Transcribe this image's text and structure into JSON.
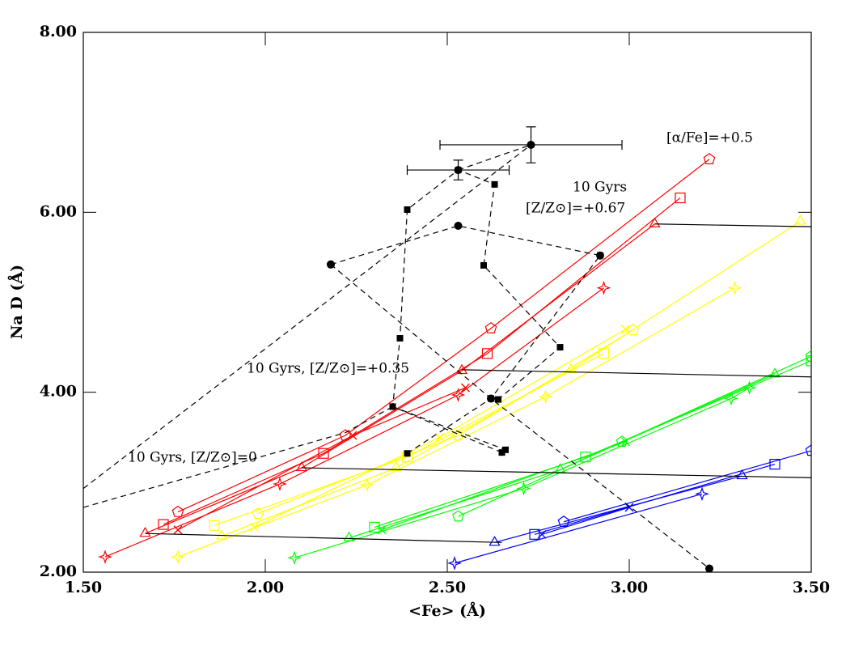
{
  "chart_data": {
    "type": "line",
    "xlabel": "<Fe> (Å)",
    "ylabel": "Na D (Å)",
    "xlim": [
      1.5,
      3.5
    ],
    "ylim": [
      2.0,
      8.0
    ],
    "xticks": [
      {
        "value": 1.5,
        "label": "1.50"
      },
      {
        "value": 2.0,
        "label": "2.00"
      },
      {
        "value": 2.5,
        "label": "2.50"
      },
      {
        "value": 3.0,
        "label": "3.00"
      },
      {
        "value": 3.5,
        "label": "3.50"
      }
    ],
    "yticks": [
      {
        "value": 2.0,
        "label": "2.00"
      },
      {
        "value": 4.0,
        "label": "4.00"
      },
      {
        "value": 6.0,
        "label": "6.00"
      },
      {
        "value": 8.0,
        "label": "8.00"
      }
    ],
    "annotations": [
      "[α/Fe]=+0.5",
      "10 Gyrs",
      "[Z/Z⊙]=+0.67",
      "10 Gyrs, [Z/Z⊙]=+0.35",
      "10 Gyrs, [Z/Z⊙]=0"
    ],
    "series": [
      {
        "color": "#ff0000",
        "marker": "pentagon",
        "x": [
          1.76,
          2.22,
          2.62,
          3.22
        ],
        "y": [
          2.67,
          3.52,
          4.71,
          6.59
        ]
      },
      {
        "color": "#ff0000",
        "marker": "square",
        "x": [
          1.72,
          2.16,
          2.61,
          3.14
        ],
        "y": [
          2.53,
          3.32,
          4.43,
          6.16
        ]
      },
      {
        "color": "#ff0000",
        "marker": "triangle",
        "x": [
          1.67,
          2.1,
          2.54,
          3.07
        ],
        "y": [
          2.43,
          3.16,
          4.24,
          5.87
        ]
      },
      {
        "color": "#ff0000",
        "marker": "x",
        "x": [
          1.76,
          2.24,
          2.55
        ],
        "y": [
          2.47,
          3.52,
          4.05
        ]
      },
      {
        "color": "#ff0000",
        "marker": "star",
        "x": [
          1.56,
          2.04,
          2.53,
          2.93
        ],
        "y": [
          2.17,
          2.98,
          3.97,
          5.16
        ]
      },
      {
        "color": "#ffff00",
        "marker": "pentagon",
        "x": [
          1.98,
          2.53,
          3.01
        ],
        "y": [
          2.65,
          3.52,
          4.69
        ]
      },
      {
        "color": "#ffff00",
        "marker": "square",
        "x": [
          1.86,
          2.39,
          2.93
        ],
        "y": [
          2.52,
          3.28,
          4.43
        ]
      },
      {
        "color": "#ffff00",
        "marker": "triangle",
        "x": [
          1.88,
          2.36,
          2.84,
          3.47
        ],
        "y": [
          2.4,
          3.16,
          4.25,
          5.9
        ]
      },
      {
        "color": "#ffff00",
        "marker": "x",
        "x": [
          1.97,
          2.48,
          2.99
        ],
        "y": [
          2.5,
          3.5,
          4.7
        ]
      },
      {
        "color": "#ffff00",
        "marker": "star",
        "x": [
          1.76,
          2.28,
          2.77,
          3.29
        ],
        "y": [
          2.17,
          2.97,
          3.95,
          5.16
        ]
      },
      {
        "color": "#00ff00",
        "marker": "pentagon",
        "x": [
          2.53,
          2.98,
          3.5
        ],
        "y": [
          2.62,
          3.45,
          4.4
        ]
      },
      {
        "color": "#00ff00",
        "marker": "square",
        "x": [
          2.3,
          2.88,
          3.5
        ],
        "y": [
          2.5,
          3.28,
          4.35
        ]
      },
      {
        "color": "#00ff00",
        "marker": "triangle",
        "x": [
          2.23,
          2.81,
          3.4
        ],
        "y": [
          2.38,
          3.14,
          4.2
        ]
      },
      {
        "color": "#00ff00",
        "marker": "x",
        "x": [
          2.32,
          2.99
        ],
        "y": [
          2.47,
          3.45
        ]
      },
      {
        "color": "#00ff00",
        "marker": "star",
        "x": [
          2.08,
          2.71,
          3.28,
          3.33
        ],
        "y": [
          2.16,
          2.93,
          3.93,
          4.05
        ]
      },
      {
        "color": "#0000ff",
        "marker": "pentagon",
        "x": [
          2.82,
          3.5
        ],
        "y": [
          2.56,
          3.35
        ]
      },
      {
        "color": "#0000ff",
        "marker": "square",
        "x": [
          2.74,
          3.4
        ],
        "y": [
          2.42,
          3.2
        ]
      },
      {
        "color": "#0000ff",
        "marker": "triangle",
        "x": [
          2.63,
          3.31
        ],
        "y": [
          2.33,
          3.07
        ]
      },
      {
        "color": "#0000ff",
        "marker": "x",
        "x": [
          2.76,
          3.0
        ],
        "y": [
          2.42,
          2.72
        ]
      },
      {
        "color": "#0000ff",
        "marker": "star",
        "x": [
          2.52,
          3.2
        ],
        "y": [
          2.1,
          2.87
        ]
      },
      {
        "color": "#000000",
        "marker": "none",
        "x": [
          3.07,
          3.5
        ],
        "y": [
          5.87,
          5.84
        ]
      },
      {
        "color": "#000000",
        "marker": "none",
        "x": [
          2.54,
          3.5
        ],
        "y": [
          4.25,
          4.17
        ]
      },
      {
        "color": "#000000",
        "marker": "none",
        "x": [
          2.1,
          3.5
        ],
        "y": [
          3.16,
          3.05
        ]
      },
      {
        "color": "#000000",
        "marker": "none",
        "x": [
          1.67,
          2.65
        ],
        "y": [
          2.43,
          2.33
        ]
      },
      {
        "color": "#000000",
        "marker": "square_filled",
        "dashed": true,
        "x": [
          2.65,
          2.35,
          2.37,
          2.39,
          2.53,
          2.63,
          2.6,
          2.81,
          2.64
        ],
        "y": [
          3.33,
          3.84,
          4.6,
          6.03,
          6.47,
          6.31,
          5.41,
          4.5,
          3.92
        ]
      },
      {
        "color": "#000000",
        "marker": "square_filled",
        "dashed": true,
        "x": [
          2.35,
          2.66
        ],
        "y": [
          3.84,
          3.36
        ]
      },
      {
        "color": "#000000",
        "marker": "circle_filled",
        "dashed": true,
        "x": [
          2.18,
          2.53,
          2.92
        ],
        "y": [
          5.42,
          5.85,
          5.52
        ]
      },
      {
        "color": "#000000",
        "marker": "circle_filled",
        "dashed": true,
        "x": [
          2.18,
          2.62,
          3.22
        ],
        "y": [
          5.42,
          3.93,
          2.04
        ]
      },
      {
        "color": "#000000",
        "marker": "square_filled",
        "dashed": true,
        "x": [
          2.39,
          2.62,
          2.92
        ],
        "y": [
          3.32,
          3.93,
          5.52
        ]
      },
      {
        "color": "#000000",
        "marker": "none",
        "dashed": true,
        "x": [
          1.5,
          2.22,
          2.35
        ],
        "y": [
          2.72,
          3.55,
          3.84
        ]
      },
      {
        "color": "#000000",
        "marker": "none",
        "dashed": true,
        "x": [
          1.5,
          2.73
        ],
        "y": [
          2.93,
          6.75
        ]
      },
      {
        "color": "#000000",
        "marker": "circle_filled",
        "dashed": true,
        "x": [
          2.53,
          2.73
        ],
        "y": [
          6.47,
          6.75
        ]
      }
    ],
    "error_bars": [
      {
        "x": 2.73,
        "y": 6.75,
        "xerr": 0.25,
        "yerr": 0.2
      },
      {
        "x": 2.53,
        "y": 6.47,
        "xerr": 0.14,
        "yerr": 0.11
      }
    ]
  }
}
